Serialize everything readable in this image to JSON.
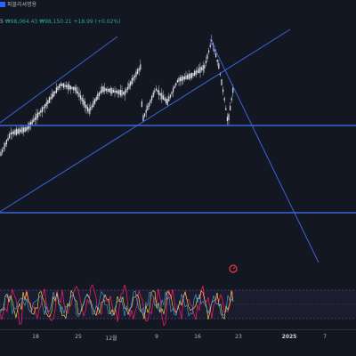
{
  "header": {
    "line1": "퍼블리셔명용",
    "line2_prefix": "5",
    "line2_price": "₩98,064.43",
    "line2_price2": "₩98,150.21",
    "line2_change": "+18.99 (+0.02%)"
  },
  "time_axis": {
    "ticks": [
      "18",
      "25",
      "12월",
      "9",
      "16",
      "23",
      "2025",
      "7"
    ]
  },
  "colors": {
    "background": "#131722",
    "candles": "#d1d4dc",
    "trendline": "#2962ff",
    "oscillator_fill": "#7e57c2",
    "oscillator_line1": "#e91e63",
    "oscillator_line2": "#ffeb3b",
    "oscillator_line3": "#42a5f5",
    "alert_icon": "#f23645"
  },
  "icons": {
    "alert": "alarm-clock-icon"
  }
}
